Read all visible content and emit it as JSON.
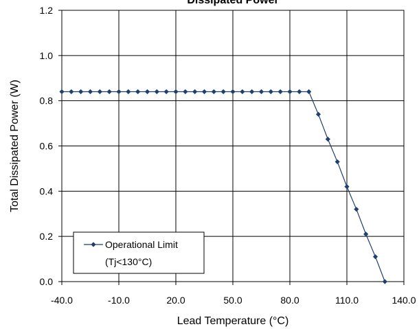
{
  "chart_data": {
    "type": "line",
    "title": "Dissipated Power",
    "xlabel": "Lead Temperature (°C)",
    "ylabel": "Total Dissipated Power (W)",
    "xlim": [
      -40,
      140
    ],
    "ylim": [
      0,
      1.2
    ],
    "xticks": [
      -40,
      -10,
      20,
      50,
      80,
      110,
      140
    ],
    "xtick_labels": [
      "-40.0",
      "-10.0",
      "20.0",
      "50.0",
      "80.0",
      "110.0",
      "140.0"
    ],
    "yticks": [
      0,
      0.2,
      0.4,
      0.6,
      0.8,
      1.0,
      1.2
    ],
    "ytick_labels": [
      "0.0",
      "0.2",
      "0.4",
      "0.6",
      "0.8",
      "1.0",
      "1.2"
    ],
    "grid": true,
    "legend_position": "bottom-left",
    "legend_lines": [
      "Operational Limit",
      "(Tj<130°C)"
    ],
    "series": [
      {
        "name": "Operational Limit (Tj<130°C)",
        "color": "#1f3f6e",
        "marker": "diamond",
        "x": [
          -40,
          -35,
          -30,
          -25,
          -20,
          -15,
          -10,
          -5,
          0,
          5,
          10,
          15,
          20,
          25,
          30,
          35,
          40,
          45,
          50,
          55,
          60,
          65,
          70,
          75,
          80,
          85,
          90,
          95,
          100,
          105,
          110,
          115,
          120,
          125,
          130
        ],
        "y": [
          0.84,
          0.84,
          0.84,
          0.84,
          0.84,
          0.84,
          0.84,
          0.84,
          0.84,
          0.84,
          0.84,
          0.84,
          0.84,
          0.84,
          0.84,
          0.84,
          0.84,
          0.84,
          0.84,
          0.84,
          0.84,
          0.84,
          0.84,
          0.84,
          0.84,
          0.84,
          0.84,
          0.74,
          0.63,
          0.53,
          0.42,
          0.32,
          0.21,
          0.11,
          0.0
        ]
      }
    ]
  }
}
